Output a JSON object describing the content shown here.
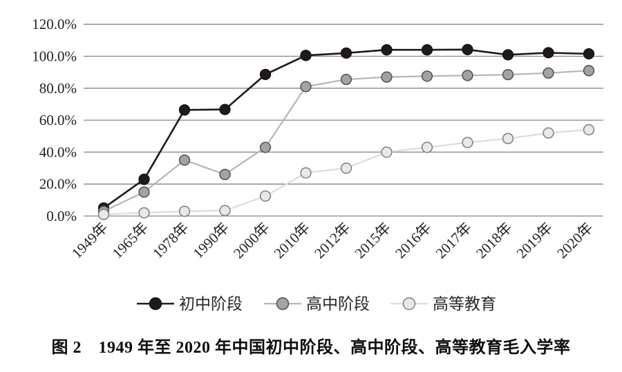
{
  "figure": {
    "caption": "图 2　1949 年至 2020 年中国初中阶段、高中阶段、高等教育毛入学率"
  },
  "chart_data": {
    "type": "line",
    "title": "",
    "xlabel": "",
    "ylabel": "",
    "categories": [
      "1949年",
      "1965年",
      "1978年",
      "1990年",
      "2000年",
      "2010年",
      "2012年",
      "2015年",
      "2016年",
      "2017年",
      "2018年",
      "2019年",
      "2020年"
    ],
    "y_axis": {
      "unit": "%",
      "min": 0,
      "max": 120,
      "tick_values": [
        0,
        20,
        40,
        60,
        80,
        100,
        120
      ],
      "tick_labels": [
        "0.0%",
        "20.0%",
        "40.0%",
        "60.0%",
        "80.0%",
        "100.0%",
        "120.0%"
      ]
    },
    "grid": "horizontal",
    "legend_position": "bottom",
    "series": [
      {
        "id": "junior-secondary",
        "name": "初中阶段",
        "line_color": "#1a1a1a",
        "marker_fill": "#211a1c",
        "marker_stroke": "#171112",
        "values": [
          5.0,
          23.0,
          66.4,
          66.7,
          88.6,
          100.5,
          102.0,
          104.0,
          104.0,
          104.2,
          100.9,
          102.2,
          101.5
        ]
      },
      {
        "id": "senior-secondary",
        "name": "高中阶段",
        "line_color": "#b5b5b5",
        "marker_fill": "#a3a3a3",
        "marker_stroke": "#4f4f4f",
        "values": [
          3.0,
          15.0,
          35.0,
          26.0,
          43.0,
          81.0,
          85.5,
          87.0,
          87.5,
          88.0,
          88.5,
          89.5,
          91.0
        ]
      },
      {
        "id": "higher-education",
        "name": "高等教育",
        "line_color": "#dcdcdc",
        "marker_fill": "#e8e8e8",
        "marker_stroke": "#7d7d7d",
        "values": [
          1.0,
          2.0,
          3.0,
          3.4,
          12.5,
          27.0,
          30.0,
          40.0,
          43.0,
          46.0,
          48.5,
          52.0,
          54.0
        ]
      }
    ],
    "colors": {
      "gridline": "#848484",
      "axis_text": "#1f1f1f",
      "background": "#ffffff"
    }
  }
}
